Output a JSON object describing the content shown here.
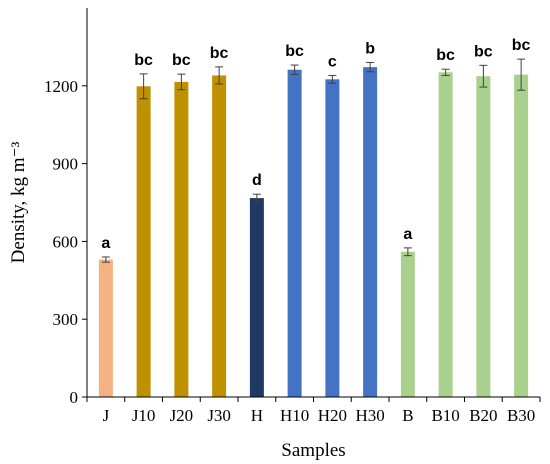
{
  "chart_data": {
    "type": "bar",
    "title": "",
    "xlabel": "Samples",
    "ylabel": "Density, kg m⁻³",
    "ylim": [
      0,
      1500
    ],
    "yticks": [
      0,
      300,
      600,
      900,
      1200
    ],
    "grid": false,
    "legend": "none",
    "categories": [
      "J",
      "J10",
      "J20",
      "J30",
      "H",
      "H10",
      "H20",
      "H30",
      "B",
      "B10",
      "B20",
      "B30"
    ],
    "values": [
      530,
      1198,
      1215,
      1240,
      767,
      1262,
      1225,
      1272,
      560,
      1252,
      1237,
      1243
    ],
    "errors": [
      10,
      48,
      30,
      33,
      15,
      18,
      15,
      18,
      15,
      12,
      42,
      60
    ],
    "significance": [
      "a",
      "bc",
      "bc",
      "bc",
      "d",
      "bc",
      "c",
      "b",
      "a",
      "bc",
      "bc",
      "bc"
    ],
    "colors": [
      "#f4b183",
      "#bf9000",
      "#bf9000",
      "#bf9000",
      "#203864",
      "#4472c4",
      "#4472c4",
      "#4472c4",
      "#a9d18e",
      "#a9d18e",
      "#a9d18e",
      "#a9d18e"
    ]
  }
}
